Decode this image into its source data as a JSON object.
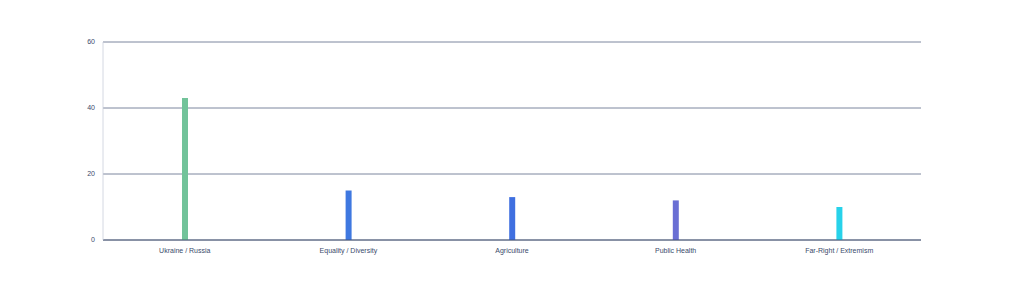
{
  "chart_data": {
    "type": "bar",
    "categories": [
      "Ukraine / Russia",
      "Equality / Diversity",
      "Agriculture",
      "Public Health",
      "Far-Right / Extremism"
    ],
    "values": [
      43,
      15,
      13,
      12,
      10
    ],
    "colors": [
      "#72c39a",
      "#3f78e0",
      "#3f6fe0",
      "#6a6fd4",
      "#27d2ea"
    ],
    "ylim": [
      0,
      60
    ],
    "yticks": [
      0,
      20,
      40,
      60
    ],
    "grid": true
  }
}
